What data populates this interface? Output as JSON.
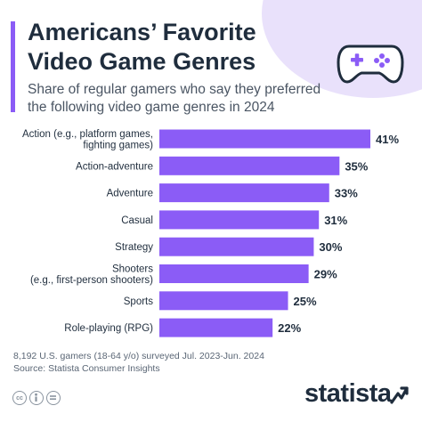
{
  "header": {
    "title_line1": "Americans’ Favorite",
    "title_line2": "Video Game Genres",
    "subtitle_line1": "Share of regular gamers who say they preferred",
    "subtitle_line2": "the following video game genres in 2024"
  },
  "colors": {
    "bar": "#8b5cf6",
    "accent": "#8b5cf6",
    "blob": "#e9e1fb",
    "text": "#1f2d3d"
  },
  "icons": {
    "gamepad": "gamepad-icon",
    "license": [
      "cc-icon",
      "info-icon",
      "equals-icon"
    ],
    "brand": "statista-mark-icon"
  },
  "chart_data": {
    "type": "bar",
    "orientation": "horizontal",
    "categories": [
      [
        "Action (e.g., platform games,",
        "fighting games)"
      ],
      [
        "Action-adventure"
      ],
      [
        "Adventure"
      ],
      [
        "Casual"
      ],
      [
        "Strategy"
      ],
      [
        "Shooters",
        "(e.g., first-person shooters)"
      ],
      [
        "Sports"
      ],
      [
        "Role-playing (RPG)"
      ]
    ],
    "values": [
      41,
      35,
      33,
      31,
      30,
      29,
      25,
      22
    ],
    "value_labels": [
      "41%",
      "35%",
      "33%",
      "31%",
      "30%",
      "29%",
      "25%",
      "22%"
    ],
    "unit": "%",
    "xlim": [
      0,
      41
    ],
    "grid": false,
    "legend": "none"
  },
  "footer": {
    "note": "8,192 U.S. gamers (18-64 y/o) surveyed Jul. 2023-Jun. 2024",
    "source": "Source: Statista Consumer Insights",
    "brand": "statista"
  }
}
